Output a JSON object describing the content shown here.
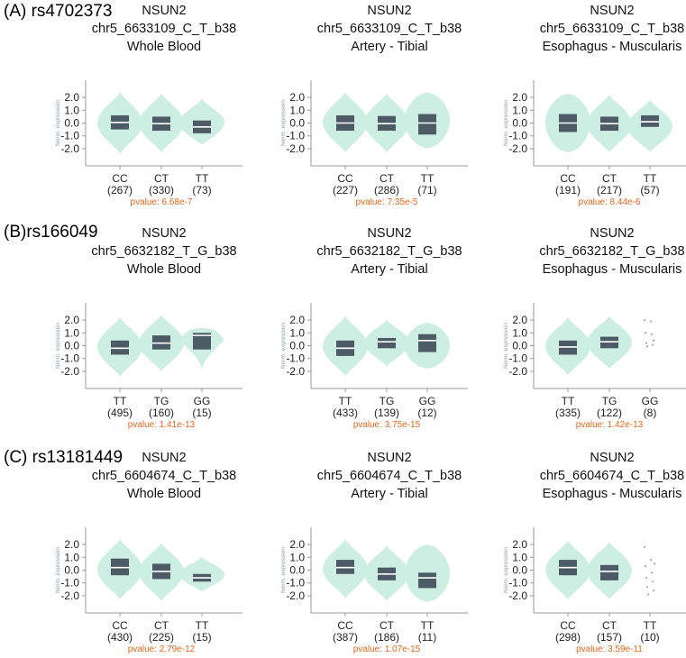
{
  "figure": {
    "rows": [
      {
        "label": "(A) rs4702373"
      },
      {
        "label": "(B)rs166049"
      },
      {
        "label": "(C) rs13181449"
      }
    ]
  },
  "chart_data": [
    {
      "type": "violin",
      "gene": "NSUN2",
      "variant": "chr5_6633109_C_T_b38",
      "tissue": "Whole Blood",
      "ylabel": "Norm. expression",
      "yticks": [
        "2.0",
        "1.0",
        "0.0",
        "-1.0",
        "-2.0"
      ],
      "ylim": [
        -3.2,
        3.2
      ],
      "groups": [
        {
          "genotype": "CC",
          "n": "(267)",
          "median": 0.05,
          "q1": -0.5,
          "q3": 0.6,
          "vmin": -2.4,
          "vmax": 2.4,
          "shape": "diamond"
        },
        {
          "genotype": "CT",
          "n": "(330)",
          "median": -0.05,
          "q1": -0.6,
          "q3": 0.5,
          "vmin": -2.3,
          "vmax": 2.3,
          "shape": "diamond"
        },
        {
          "genotype": "TT",
          "n": "(73)",
          "median": -0.3,
          "q1": -0.8,
          "q3": 0.2,
          "vmin": -1.7,
          "vmax": 2.2,
          "shape": "rise"
        }
      ],
      "pvalue": "pvalue: 6.68e-7"
    },
    {
      "type": "violin",
      "gene": "NSUN2",
      "variant": "chr5_6633109_C_T_b38",
      "tissue": "Artery - Tibial",
      "ylabel": "Norm. expression",
      "yticks": [
        "2.0",
        "1.0",
        "0.0",
        "-1.0",
        "-2.0"
      ],
      "ylim": [
        -3.2,
        3.2
      ],
      "groups": [
        {
          "genotype": "CC",
          "n": "(227)",
          "median": 0.0,
          "q1": -0.6,
          "q3": 0.6,
          "vmin": -2.3,
          "vmax": 2.4,
          "shape": "diamond"
        },
        {
          "genotype": "CT",
          "n": "(286)",
          "median": -0.05,
          "q1": -0.6,
          "q3": 0.55,
          "vmin": -2.3,
          "vmax": 2.3,
          "shape": "diamond"
        },
        {
          "genotype": "TT",
          "n": "(71)",
          "median": 0.0,
          "q1": -0.9,
          "q3": 0.7,
          "vmin": -2.0,
          "vmax": 2.4,
          "shape": "wide"
        }
      ],
      "pvalue": "pvalue: 7.35e-5"
    },
    {
      "type": "violin",
      "gene": "NSUN2",
      "variant": "chr5_6633109_C_T_b38",
      "tissue": "Esophagus - Muscularis",
      "ylabel": "Norm. expression",
      "yticks": [
        "2.0",
        "1.0",
        "0.0",
        "-1.0",
        "-2.0"
      ],
      "ylim": [
        -3.2,
        3.2
      ],
      "groups": [
        {
          "genotype": "CC",
          "n": "(191)",
          "median": 0.0,
          "q1": -0.7,
          "q3": 0.7,
          "vmin": -2.3,
          "vmax": 2.3,
          "shape": "wide"
        },
        {
          "genotype": "CT",
          "n": "(217)",
          "median": -0.05,
          "q1": -0.6,
          "q3": 0.5,
          "vmin": -2.3,
          "vmax": 2.2,
          "shape": "diamond"
        },
        {
          "genotype": "TT",
          "n": "(57)",
          "median": 0.1,
          "q1": -0.3,
          "q3": 0.6,
          "vmin": -2.3,
          "vmax": 1.8,
          "shape": "diamond"
        }
      ],
      "pvalue": "pvalue: 8.44e-6"
    },
    {
      "type": "violin",
      "gene": "NSUN2",
      "variant": "chr5_6632182_T_G_b38",
      "tissue": "Whole Blood",
      "ylabel": "Norm. expression",
      "yticks": [
        "2.0",
        "1.0",
        "0.0",
        "-1.0",
        "-2.0"
      ],
      "ylim": [
        -3.2,
        3.2
      ],
      "groups": [
        {
          "genotype": "TT",
          "n": "(495)",
          "median": -0.2,
          "q1": -0.7,
          "q3": 0.4,
          "vmin": -2.4,
          "vmax": 2.2,
          "shape": "diamond"
        },
        {
          "genotype": "TG",
          "n": "(160)",
          "median": 0.2,
          "q1": -0.3,
          "q3": 0.8,
          "vmin": -2.0,
          "vmax": 2.4,
          "shape": "diamond"
        },
        {
          "genotype": "GG",
          "n": "(15)",
          "median": 0.8,
          "q1": -0.3,
          "q3": 1.0,
          "vmin": -1.9,
          "vmax": 1.4,
          "shape": "top"
        }
      ],
      "pvalue": "pvalue: 1.41e-13"
    },
    {
      "type": "violin",
      "gene": "NSUN2",
      "variant": "chr5_6632182_T_G_b38",
      "tissue": "Artery - Tibial",
      "ylabel": "Norm. expression",
      "yticks": [
        "2.0",
        "1.0",
        "0.0",
        "-1.0",
        "-2.0"
      ],
      "ylim": [
        -3.2,
        3.2
      ],
      "groups": [
        {
          "genotype": "TT",
          "n": "(433)",
          "median": -0.2,
          "q1": -0.8,
          "q3": 0.4,
          "vmin": -2.4,
          "vmax": 2.3,
          "shape": "diamond"
        },
        {
          "genotype": "TG",
          "n": "(139)",
          "median": 0.3,
          "q1": -0.2,
          "q3": 0.6,
          "vmin": -1.6,
          "vmax": 2.0,
          "shape": "diamond"
        },
        {
          "genotype": "GG",
          "n": "(12)",
          "median": 0.4,
          "q1": -0.5,
          "q3": 0.9,
          "vmin": -1.8,
          "vmax": 1.8,
          "shape": "wide"
        }
      ],
      "pvalue": "pvalue: 3.75e-15"
    },
    {
      "type": "violin",
      "gene": "NSUN2",
      "variant": "chr5_6632182_T_G_b38",
      "tissue": "Esophagus - Muscularis",
      "ylabel": "Norm. expression",
      "yticks": [
        "2.0",
        "1.0",
        "0.0",
        "-1.0",
        "-2.0"
      ],
      "ylim": [
        -3.2,
        3.2
      ],
      "groups": [
        {
          "genotype": "TT",
          "n": "(335)",
          "median": -0.1,
          "q1": -0.7,
          "q3": 0.4,
          "vmin": -2.3,
          "vmax": 2.2,
          "shape": "diamond"
        },
        {
          "genotype": "TG",
          "n": "(122)",
          "median": 0.3,
          "q1": -0.2,
          "q3": 0.7,
          "vmin": -1.8,
          "vmax": 2.3,
          "shape": "diamond"
        },
        {
          "genotype": "GG",
          "n": "(8)",
          "points": [
            2.0,
            1.9,
            1.0,
            0.9,
            0.2,
            0.05,
            -0.05,
            0.4
          ]
        }
      ],
      "pvalue": "pvalue: 1.42e-13"
    },
    {
      "type": "violin",
      "gene": "NSUN2",
      "variant": "chr5_6604674_C_T_b38",
      "tissue": "Whole Blood",
      "ylabel": "Norm. expression",
      "yticks": [
        "2.0",
        "1.0",
        "0.0",
        "-1.0",
        "-2.0"
      ],
      "ylim": [
        -3.2,
        3.2
      ],
      "groups": [
        {
          "genotype": "CC",
          "n": "(430)",
          "median": 0.2,
          "q1": -0.4,
          "q3": 0.9,
          "vmin": -2.3,
          "vmax": 2.4,
          "shape": "diamond"
        },
        {
          "genotype": "CT",
          "n": "(225)",
          "median": -0.1,
          "q1": -0.7,
          "q3": 0.5,
          "vmin": -2.4,
          "vmax": 2.1,
          "shape": "diamond"
        },
        {
          "genotype": "TT",
          "n": "(15)",
          "median": -0.6,
          "q1": -0.9,
          "q3": -0.3,
          "vmin": -1.7,
          "vmax": 1.0,
          "shape": "diamond"
        }
      ],
      "pvalue": "pvalue: 2.79e-12"
    },
    {
      "type": "violin",
      "gene": "NSUN2",
      "variant": "chr5_6604674_C_T_b38",
      "tissue": "Artery - Tibial",
      "ylabel": "Norm. expression",
      "yticks": [
        "2.0",
        "1.0",
        "0.0",
        "-1.0",
        "-2.0"
      ],
      "ylim": [
        -3.2,
        3.2
      ],
      "groups": [
        {
          "genotype": "CC",
          "n": "(387)",
          "median": 0.2,
          "q1": -0.3,
          "q3": 0.8,
          "vmin": -2.2,
          "vmax": 2.4,
          "shape": "diamond"
        },
        {
          "genotype": "CT",
          "n": "(186)",
          "median": -0.3,
          "q1": -0.8,
          "q3": 0.2,
          "vmin": -2.4,
          "vmax": 1.9,
          "shape": "diamond"
        },
        {
          "genotype": "TT",
          "n": "(11)",
          "median": -0.6,
          "q1": -1.4,
          "q3": -0.2,
          "vmin": -2.5,
          "vmax": 2.0,
          "shape": "wide"
        }
      ],
      "pvalue": "pvalue: 1.07e-15"
    },
    {
      "type": "violin",
      "gene": "NSUN2",
      "variant": "chr5_6604674_C_T_b38",
      "tissue": "Esophagus - Muscularis",
      "ylabel": "Norm. expression",
      "yticks": [
        "2.0",
        "1.0",
        "0.0",
        "-1.0",
        "-2.0"
      ],
      "ylim": [
        -3.2,
        3.2
      ],
      "groups": [
        {
          "genotype": "CC",
          "n": "(298)",
          "median": 0.2,
          "q1": -0.4,
          "q3": 0.8,
          "vmin": -2.3,
          "vmax": 2.3,
          "shape": "diamond"
        },
        {
          "genotype": "CT",
          "n": "(157)",
          "median": -0.1,
          "q1": -0.8,
          "q3": 0.4,
          "vmin": -2.3,
          "vmax": 2.2,
          "shape": "diamond"
        },
        {
          "genotype": "TT",
          "n": "(10)",
          "points": [
            1.8,
            0.8,
            0.3,
            -0.2,
            -0.6,
            -0.9,
            -1.3,
            -1.6,
            -1.9,
            0.5
          ]
        }
      ],
      "pvalue": "pvalue: 3.59e-11"
    }
  ],
  "colors": {
    "violin": "#cdeee2",
    "box": "#4d5b66",
    "median": "#ffffff",
    "axis": "#999999",
    "tick_text": "#222222",
    "ylabel_text": "#8aa0b0",
    "pvalue": "#e8661a",
    "point": "#8a9aa6"
  }
}
